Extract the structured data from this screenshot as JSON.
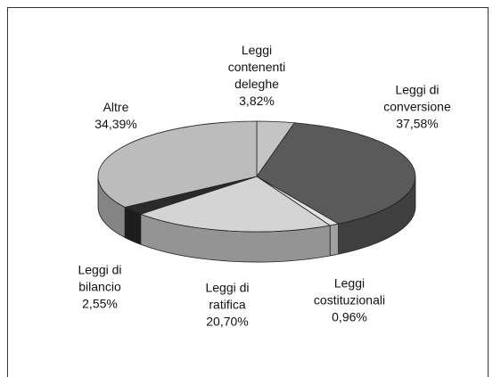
{
  "chart_data": {
    "type": "pie",
    "categories": [
      "Leggi contenenti deleghe",
      "Leggi di conversione",
      "Leggi costituzionali",
      "Leggi di ratifica",
      "Leggi di bilancio",
      "Altre"
    ],
    "values": [
      3.82,
      37.58,
      0.96,
      20.7,
      2.55,
      34.39
    ],
    "value_labels": [
      "3,82%",
      "37,58%",
      "0,96%",
      "20,70%",
      "2,55%",
      "34,39%"
    ],
    "colors": [
      "#c4c4c4",
      "#5a5a5a",
      "#e4e4e4",
      "#d4d4d4",
      "#2a2a2a",
      "#bcbcbc"
    ]
  }
}
